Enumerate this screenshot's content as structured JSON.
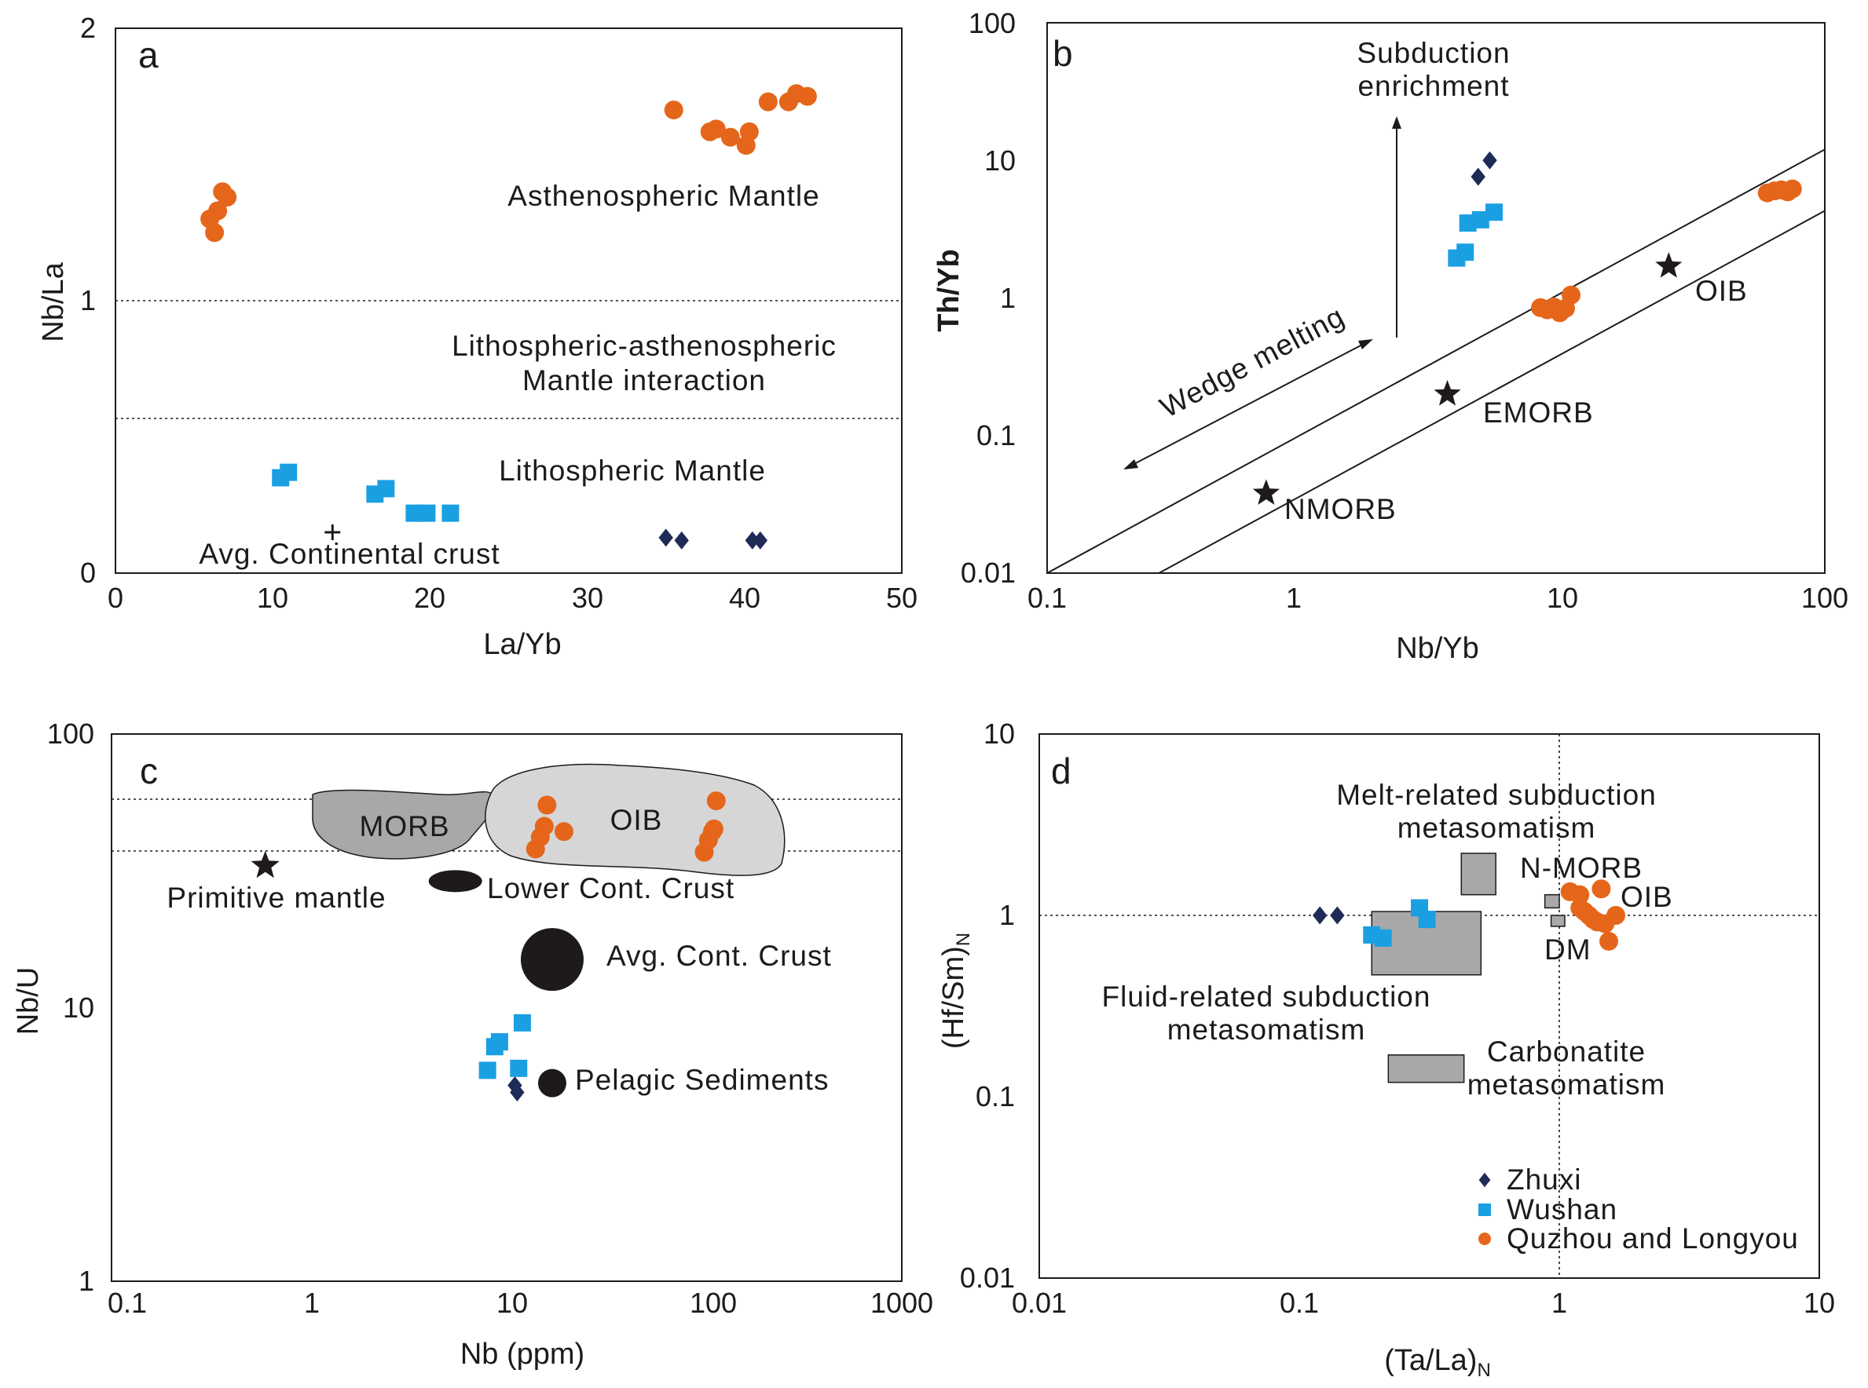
{
  "chart_data": [
    {
      "panel": "a",
      "type": "scatter",
      "xscale": "linear",
      "yscale": "linear",
      "xlim": [
        0,
        50
      ],
      "ylim": [
        0,
        2
      ],
      "xticks": [
        "0",
        "10",
        "20",
        "30",
        "40",
        "50"
      ],
      "yticks": [
        "0",
        "1",
        "2"
      ],
      "xlabel": "La/Yb",
      "ylabel": "Nb/La",
      "hlines": [
        1.0,
        0.57
      ],
      "annotations": [
        "Asthenospheric Mantle",
        "Lithospheric-asthenospheric",
        "Mantle interaction",
        "Lithospheric Mantle",
        "Avg. Continental crust"
      ],
      "reference_points": [
        {
          "name": "Avg. Continental crust",
          "x": 13.8,
          "y": 0.15
        }
      ],
      "series": [
        {
          "name": "Zhuxi",
          "x": [
            35,
            36,
            40.5,
            41
          ],
          "y": [
            0.13,
            0.12,
            0.12,
            0.12
          ]
        },
        {
          "name": "Wushan",
          "x": [
            10.5,
            11,
            16.5,
            17.2,
            19,
            19.8,
            21.3
          ],
          "y": [
            0.35,
            0.37,
            0.29,
            0.31,
            0.22,
            0.22,
            0.22
          ]
        },
        {
          "name": "Quzhou and Longyou",
          "x": [
            6,
            6.3,
            6.5,
            6.8,
            7.1,
            35.5,
            37.8,
            38.2,
            39.1,
            40.1,
            40.3,
            41.5,
            42.8,
            43.3,
            44
          ],
          "y": [
            1.3,
            1.25,
            1.33,
            1.4,
            1.38,
            1.7,
            1.62,
            1.63,
            1.6,
            1.57,
            1.62,
            1.73,
            1.73,
            1.76,
            1.75
          ]
        }
      ]
    },
    {
      "panel": "b",
      "type": "scatter",
      "xscale": "log",
      "yscale": "log",
      "xlim": [
        0.1,
        100
      ],
      "ylim": [
        0.01,
        100
      ],
      "xticks": [
        "0.1",
        "1",
        "10",
        "100"
      ],
      "yticks": [
        "0.01",
        "0.1",
        "1",
        "10",
        "100"
      ],
      "xlabel": "Nb/Yb",
      "ylabel": "Th/Yb",
      "annotations": [
        "Subduction",
        "enrichment",
        "Wedge melting",
        "OIB",
        "EMORB",
        "NMORB"
      ],
      "reference_points": [
        {
          "name": "NMORB",
          "x": 0.7,
          "y": 0.038
        },
        {
          "name": "EMORB",
          "x": 3.5,
          "y": 0.2
        },
        {
          "name": "OIB",
          "x": 25,
          "y": 1.7
        }
      ],
      "array_lines": [
        {
          "x": [
            0.1,
            100
          ],
          "y": [
            0.01,
            12
          ]
        },
        {
          "x": [
            0.27,
            100
          ],
          "y": [
            0.01,
            4.3
          ]
        }
      ],
      "series": [
        {
          "name": "Zhuxi",
          "x": [
            4.6,
            5.1
          ],
          "y": [
            7.6,
            10
          ]
        },
        {
          "name": "Wushan",
          "x": [
            3.8,
            4.1,
            4.2,
            4.7,
            5.3
          ],
          "y": [
            1.95,
            2.15,
            3.5,
            3.7,
            4.2
          ]
        },
        {
          "name": "Quzhou and Longyou",
          "x": [
            8,
            8.5,
            9,
            9.5,
            10,
            10.5,
            60,
            64,
            68,
            72,
            75
          ],
          "y": [
            0.85,
            0.82,
            0.86,
            0.78,
            0.84,
            1.05,
            5.8,
            6.0,
            6.1,
            5.9,
            6.2
          ]
        }
      ]
    },
    {
      "panel": "c",
      "type": "scatter",
      "xscale": "log",
      "yscale": "log",
      "xlim": [
        0.1,
        1000
      ],
      "ylim": [
        1,
        100
      ],
      "xticks": [
        "0.1",
        "1",
        "10",
        "100",
        "1000"
      ],
      "yticks": [
        "1",
        "10",
        "100"
      ],
      "xlabel": "Nb (ppm)",
      "ylabel": "Nb/U",
      "hlines": [
        58,
        38
      ],
      "fields": [
        "MORB",
        "OIB"
      ],
      "annotations": [
        "Primitive mantle",
        "Lower Cont. Crust",
        "Avg. Cont. Crust",
        "Pelagic Sediments"
      ],
      "reference_points": [
        {
          "name": "Primitive mantle",
          "x": 0.6,
          "y": 33
        },
        {
          "name": "Lower Cont. Crust",
          "x": 5.5,
          "y": 29
        },
        {
          "name": "Avg. Cont. Crust",
          "x": 17,
          "y": 15
        },
        {
          "name": "Pelagic Sediments",
          "x": 17,
          "y": 5.3
        }
      ],
      "series": [
        {
          "name": "Zhuxi",
          "x": [
            11,
            11.3
          ],
          "y": [
            5.2,
            4.9
          ]
        },
        {
          "name": "Wushan",
          "x": [
            8,
            8.7,
            9.2,
            11.5,
            12
          ],
          "y": [
            5.9,
            7.2,
            7.5,
            6.0,
            8.8
          ]
        },
        {
          "name": "Quzhou and Longyou",
          "x": [
            14,
            14.8,
            15.5,
            16,
            19.5,
            100,
            105,
            110,
            112,
            115
          ],
          "y": [
            38,
            42,
            46,
            55,
            44,
            37,
            41,
            44,
            45,
            57
          ]
        }
      ]
    },
    {
      "panel": "d",
      "type": "scatter",
      "xscale": "log",
      "yscale": "log",
      "xlim": [
        0.01,
        10
      ],
      "ylim": [
        0.01,
        10
      ],
      "xticks": [
        "0.01",
        "0.1",
        "1",
        "10"
      ],
      "yticks": [
        "0.01",
        "0.1",
        "1",
        "10"
      ],
      "xlabel": "(Ta/La)N",
      "ylabel": "(Hf/Sm)N",
      "ref_lines": {
        "x": 1,
        "y": 1
      },
      "annotations": [
        "Melt-related subduction",
        "metasomatism",
        "N-MORB",
        "OIB",
        "DM",
        "Fluid-related subduction",
        "metasomatism",
        "Carbonatite",
        "metasomatism"
      ],
      "fields": [
        {
          "name": "Fluid-related subduction metasomatism",
          "x": [
            0.19,
            0.5
          ],
          "y": [
            0.47,
            1.05
          ]
        },
        {
          "name": "Melt-related subduction metasomatism",
          "x": [
            0.42,
            0.57
          ],
          "y": [
            1.3,
            2.2
          ]
        },
        {
          "name": "Carbonatite metasomatism",
          "x": [
            0.22,
            0.43
          ],
          "y": [
            0.12,
            0.17
          ]
        },
        {
          "name": "N-MORB",
          "x": [
            0.88,
            1.0
          ],
          "y": [
            1.1,
            1.3
          ]
        },
        {
          "name": "DM",
          "x": [
            0.93,
            1.05
          ],
          "y": [
            0.87,
            1.0
          ]
        }
      ],
      "series": [
        {
          "name": "Zhuxi",
          "x": [
            0.12,
            0.14
          ],
          "y": [
            1.0,
            1.0
          ]
        },
        {
          "name": "Wushan",
          "x": [
            0.19,
            0.21,
            0.29,
            0.31
          ],
          "y": [
            0.78,
            0.75,
            1.1,
            0.95
          ]
        },
        {
          "name": "Quzhou and Longyou",
          "x": [
            1.1,
            1.2,
            1.25,
            1.3,
            1.35,
            1.45,
            1.5,
            1.55,
            1.65,
            1.4,
            1.2
          ],
          "y": [
            1.35,
            1.3,
            1.05,
            1.0,
            0.95,
            1.4,
            0.9,
            0.72,
            1.0,
            0.92,
            1.1
          ]
        }
      ],
      "legend": [
        {
          "name": "Zhuxi",
          "marker": "diamond",
          "color": "#1e2b57"
        },
        {
          "name": "Wushan",
          "marker": "square",
          "color": "#1b9fe3"
        },
        {
          "name": "Quzhou and Longyou",
          "marker": "circle",
          "color": "#e5661a"
        }
      ]
    }
  ],
  "panel_labels": [
    "a",
    "b",
    "c",
    "d"
  ],
  "colors": {
    "Zhuxi": "#1e2b57",
    "Wushan": "#1b9fe3",
    "Quzhou and Longyou": "#e5661a",
    "field": "#a8a8a8",
    "field_light": "#d6d6d6",
    "ref": "#1e1a19"
  }
}
